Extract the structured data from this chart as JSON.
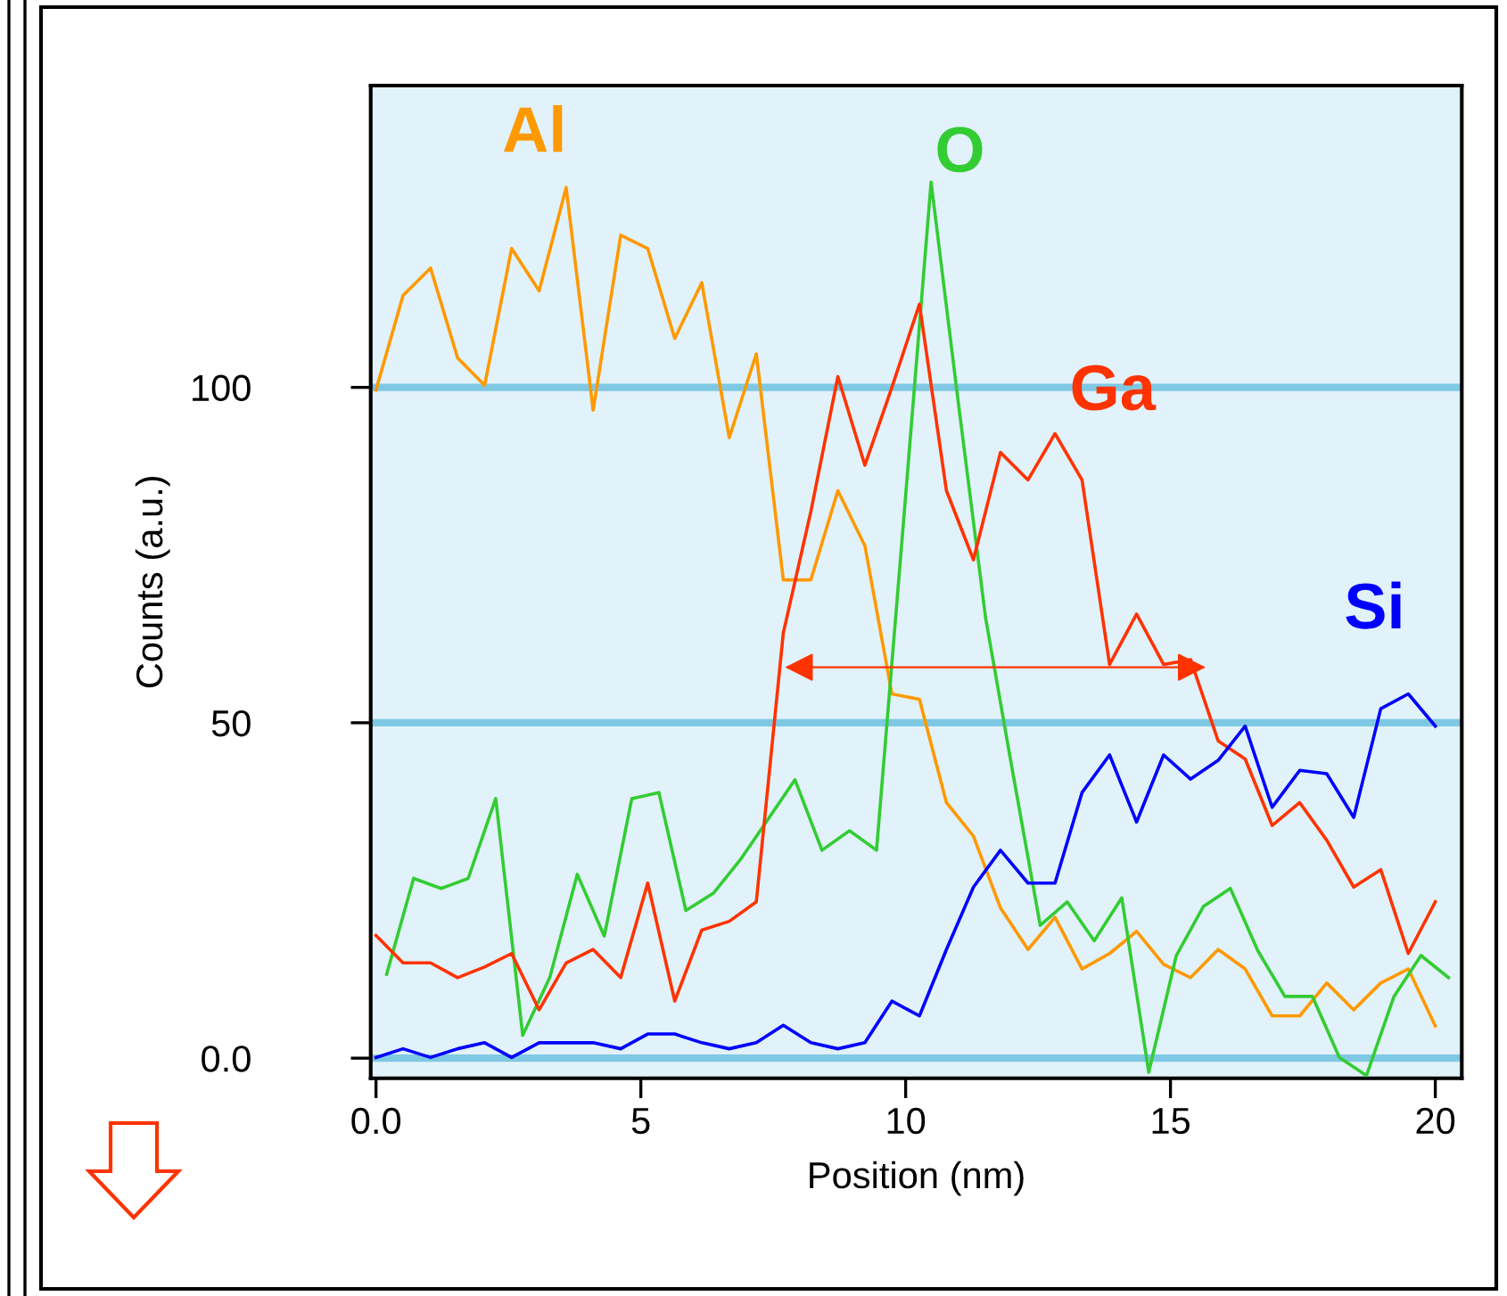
{
  "chart_data": {
    "type": "line",
    "xlabel": "Position (nm)",
    "ylabel": "Counts (a.u.)",
    "xlim": [
      -0.1,
      20.5
    ],
    "ylim": [
      -3,
      145
    ],
    "xticks": [
      {
        "value": 0,
        "label": "0.0"
      },
      5,
      10,
      15,
      20
    ],
    "yticks": [
      {
        "value": 0,
        "label": "0.0"
      },
      50,
      100
    ],
    "grid": "y",
    "legend": false,
    "marker": "none",
    "line_style": "solid",
    "x": [
      0,
      0.51,
      1.03,
      1.54,
      2.05,
      2.56,
      3.08,
      3.59,
      4.1,
      4.62,
      5.13,
      5.64,
      6.15,
      6.67,
      7.18,
      7.69,
      8.21,
      8.72,
      9.23,
      9.74,
      10.26,
      10.77,
      11.28,
      11.79,
      12.31,
      12.82,
      13.33,
      13.85,
      14.36,
      14.87,
      15.38,
      15.9,
      16.41,
      16.92,
      17.44,
      17.95,
      18.46,
      18.97,
      19.49,
      20
    ],
    "series": [
      {
        "name": "Al",
        "color": "#ff9900",
        "values": [
          99.6,
          113.7,
          117.8,
          104.4,
          100.3,
          120.7,
          114.4,
          129.8,
          96.6,
          122.7,
          120.7,
          107.3,
          115.6,
          92.5,
          105,
          71.3,
          71.3,
          84.6,
          76.4,
          54.3,
          53.5,
          38.1,
          33.1,
          22.4,
          16.2,
          21,
          13.3,
          15.6,
          18.9,
          14,
          12,
          16.2,
          13.3,
          6.3,
          6.3,
          11.2,
          7.2,
          11.2,
          13.3,
          4.8
        ]
      },
      {
        "name": "O",
        "color": "#33cc33",
        "x": [
          0.2,
          0.71,
          1.23,
          1.74,
          2.26,
          2.77,
          3.28,
          3.8,
          4.31,
          4.83,
          5.34,
          5.85,
          6.37,
          6.88,
          7.4,
          7.91,
          8.42,
          8.94,
          9.45,
          9.97,
          10.48,
          10.99,
          11.51,
          12.02,
          12.54,
          13.05,
          13.56,
          14.08,
          14.59,
          15.11,
          15.62,
          16.13,
          16.65,
          17.16,
          17.68,
          18.19,
          18.7,
          19.22,
          19.73,
          20.25
        ],
        "values": [
          12.5,
          26.8,
          25.3,
          26.8,
          38.7,
          3.4,
          12,
          27.4,
          18.2,
          38.7,
          39.6,
          22,
          24.6,
          29.6,
          35.6,
          41.5,
          31,
          33.9,
          31,
          81,
          130.6,
          98,
          65.6,
          42.7,
          19.8,
          23.3,
          17.5,
          23.9,
          -2.1,
          15.3,
          22.6,
          25.3,
          16,
          9.2,
          9.2,
          0.1,
          -2.6,
          9.2,
          15.3,
          12
        ]
      },
      {
        "name": "Ga",
        "color": "#ff3300",
        "values": [
          18.3,
          14.2,
          14.2,
          12,
          13.6,
          15.6,
          7.2,
          14.2,
          16.2,
          12,
          26.1,
          8.5,
          19.1,
          20.4,
          23.3,
          63.4,
          81.5,
          101.6,
          88.4,
          100,
          112.4,
          84.6,
          74.3,
          90.3,
          86.2,
          93.1,
          86.2,
          58.7,
          66.2,
          58.7,
          59.4,
          47.3,
          44.6,
          34.7,
          38.1,
          32.5,
          25.5,
          28.1,
          15.6,
          23.3
        ]
      },
      {
        "name": "Si",
        "color": "#0000ff",
        "values": [
          0.1,
          1.4,
          0.1,
          1.4,
          2.3,
          0.1,
          2.3,
          2.3,
          2.3,
          1.4,
          3.6,
          3.6,
          2.3,
          1.4,
          2.3,
          4.9,
          2.3,
          1.4,
          2.3,
          8.5,
          6.3,
          16.2,
          25.5,
          31,
          26.1,
          26.1,
          39.6,
          45.2,
          35.2,
          45.2,
          41.6,
          44.4,
          49.5,
          37.4,
          42.9,
          42.4,
          35.9,
          52.1,
          54.3,
          49.5
        ]
      }
    ]
  }
}
